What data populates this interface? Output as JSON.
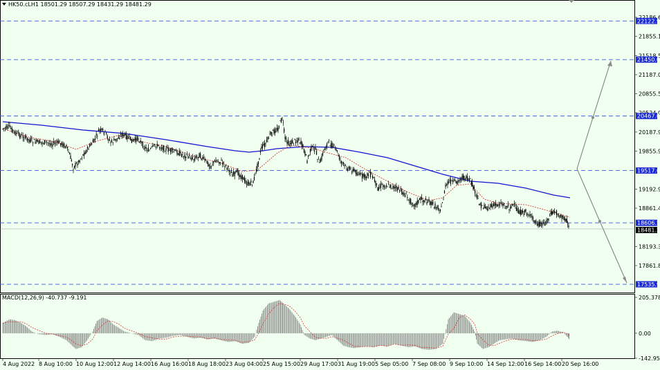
{
  "header": {
    "symbol_line": "HK50.cLH1  18501.29 18507.29 18431.29 18481.29"
  },
  "price_axis": {
    "ticks": [
      {
        "label": "22186.60",
        "value": 22186.6
      },
      {
        "label": "21855.10",
        "value": 21855.1
      },
      {
        "label": "21518.50",
        "value": 21518.5
      },
      {
        "label": "21187.00",
        "value": 21187.0
      },
      {
        "label": "20855.50",
        "value": 20855.5
      },
      {
        "label": "20524.00",
        "value": 20524.0
      },
      {
        "label": "20187.90",
        "value": 20187.9
      },
      {
        "label": "19855.90",
        "value": 19855.9
      },
      {
        "label": "19192.90",
        "value": 19192.9
      },
      {
        "label": "18861.40",
        "value": 18861.4
      },
      {
        "label": "18193.30",
        "value": 18193.3
      },
      {
        "label": "17861.80",
        "value": 17861.8
      }
    ],
    "levels": [
      {
        "label": "22122.93",
        "value": 22122.93
      },
      {
        "label": "21450.00",
        "value": 21450.0
      },
      {
        "label": "20467.00",
        "value": 20467.0
      },
      {
        "label": "19517.00",
        "value": 19517.0
      },
      {
        "label": "18606.58",
        "value": 18606.58
      },
      {
        "label": "17535.97",
        "value": 17535.97
      }
    ],
    "current_price": {
      "label": "18481.29",
      "value": 18481.29
    }
  },
  "macd": {
    "label": "MACD(12,26,9) -40.737 -9.191",
    "ticks": [
      {
        "label": "205.378",
        "value": 205.378
      },
      {
        "label": "0.00",
        "value": 0
      },
      {
        "label": "-142.955",
        "value": -142.955
      }
    ]
  },
  "time_axis": {
    "labels": [
      "4 Aug 2022",
      "8 Aug 10:00",
      "10 Aug 12:00",
      "12 Aug 14:00",
      "16 Aug 16:00",
      "18 Aug 18:00",
      "23 Aug 04:00",
      "25 Aug 15:00",
      "29 Aug 17:00",
      "31 Aug 19:00",
      "5 Sep 05:00",
      "7 Sep 08:00",
      "9 Sep 10:00",
      "14 Sep 12:00",
      "16 Sep 14:00",
      "20 Sep 16:00"
    ]
  },
  "chart_data": {
    "type": "candlestick",
    "symbol": "HK50.c",
    "timeframe": "H1",
    "ohlc_last": {
      "open": 18501.29,
      "high": 18507.29,
      "low": 18431.29,
      "close": 18481.29
    },
    "ylim": [
      17470,
      22380
    ],
    "horizontal_levels": [
      22122.93,
      21450.0,
      20467.0,
      19517.0,
      18606.58,
      17535.97
    ],
    "close_series": [
      {
        "x": "4 Aug 2022",
        "y": 20250
      },
      {
        "x": "5 Aug",
        "y": 20180
      },
      {
        "x": "8 Aug 10:00",
        "y": 20000
      },
      {
        "x": "9 Aug",
        "y": 19850
      },
      {
        "x": "10 Aug 12:00",
        "y": 19620
      },
      {
        "x": "11 Aug",
        "y": 20200
      },
      {
        "x": "12 Aug 14:00",
        "y": 20100
      },
      {
        "x": "15 Aug",
        "y": 20050
      },
      {
        "x": "16 Aug 16:00",
        "y": 19950
      },
      {
        "x": "17 Aug",
        "y": 19800
      },
      {
        "x": "18 Aug 18:00",
        "y": 19650
      },
      {
        "x": "19 Aug",
        "y": 19550
      },
      {
        "x": "22 Aug",
        "y": 19400
      },
      {
        "x": "23 Aug 04:00",
        "y": 19300
      },
      {
        "x": "24 Aug",
        "y": 19900
      },
      {
        "x": "25 Aug 15:00",
        "y": 20300
      },
      {
        "x": "26 Aug",
        "y": 20100
      },
      {
        "x": "29 Aug 17:00",
        "y": 19900
      },
      {
        "x": "30 Aug",
        "y": 19800
      },
      {
        "x": "31 Aug 19:00",
        "y": 19550
      },
      {
        "x": "1 Sep",
        "y": 19400
      },
      {
        "x": "2 Sep",
        "y": 19300
      },
      {
        "x": "5 Sep 05:00",
        "y": 19200
      },
      {
        "x": "6 Sep",
        "y": 19100
      },
      {
        "x": "7 Sep 08:00",
        "y": 18900
      },
      {
        "x": "8 Sep",
        "y": 19200
      },
      {
        "x": "9 Sep 10:00",
        "y": 19300
      },
      {
        "x": "13 Sep",
        "y": 18950
      },
      {
        "x": "14 Sep 12:00",
        "y": 18850
      },
      {
        "x": "15 Sep",
        "y": 18800
      },
      {
        "x": "16 Sep 14:00",
        "y": 18600
      },
      {
        "x": "19 Sep",
        "y": 18750
      },
      {
        "x": "20 Sep 16:00",
        "y": 18481.29
      }
    ]
  },
  "colors": {
    "background": "#f0fff0",
    "level_line": "#3b5bdb",
    "level_box": "#1a2bd6",
    "ma_blue": "#1414d4",
    "ma_red": "#d43c3c",
    "candle": "#000000",
    "projection": "#8a8a8a",
    "current_box": "#000000"
  }
}
